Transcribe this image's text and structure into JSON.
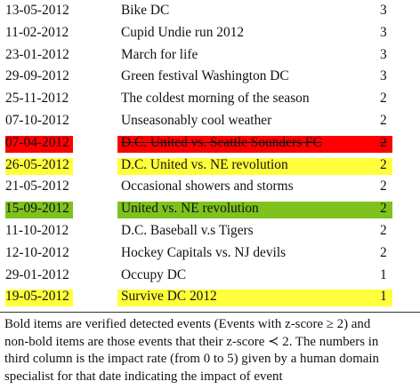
{
  "table": {
    "rows": [
      {
        "date": "13-05-2012",
        "event": "Bike DC",
        "rating": "3",
        "highlight": ""
      },
      {
        "date": "11-02-2012",
        "event": "Cupid Undie run 2012",
        "rating": "3",
        "highlight": ""
      },
      {
        "date": "23-01-2012",
        "event": "March for life",
        "rating": "3",
        "highlight": ""
      },
      {
        "date": "29-09-2012",
        "event": "Green festival Washington DC",
        "rating": "3",
        "highlight": ""
      },
      {
        "date": "25-11-2012",
        "event": "The coldest morning of the season",
        "rating": "2",
        "highlight": ""
      },
      {
        "date": "07-10-2012",
        "event": "Unseasonably cool weather",
        "rating": "2",
        "highlight": ""
      },
      {
        "date": "07-04-2012",
        "event": "D.C. United vs. Seattle Sounders FC",
        "rating": "2",
        "highlight": "red",
        "strike": true
      },
      {
        "date": "26-05-2012",
        "event": "D.C. United vs. NE revolution",
        "rating": "2",
        "highlight": "yellow"
      },
      {
        "date": "21-05-2012",
        "event": "Occasional showers and storms",
        "rating": "2",
        "highlight": ""
      },
      {
        "date": "15-09-2012",
        "event": "United vs. NE revolution",
        "rating": "2",
        "highlight": "green"
      },
      {
        "date": "11-10-2012",
        "event": "D.C. Baseball v.s Tigers",
        "rating": "2",
        "highlight": ""
      },
      {
        "date": "12-10-2012",
        "event": "Hockey Capitals vs. NJ devils",
        "rating": "2",
        "highlight": ""
      },
      {
        "date": "29-01-2012",
        "event": "Occupy DC",
        "rating": "1",
        "highlight": ""
      },
      {
        "date": "19-05-2012",
        "event": "Survive DC 2012",
        "rating": "1",
        "highlight": "yellow"
      }
    ]
  },
  "colors": {
    "yellow": "#ffff3c",
    "red": "#ff0000",
    "green": "#7ec21e"
  },
  "caption": {
    "lines": [
      "Bold items are verified detected events (Events with z-score ≥ 2) and",
      "non-bold items are those events that their z-score ≺ 2. The numbers in",
      "third column is the impact rate (from 0 to 5) given by a human domain",
      "specialist for that date indicating the impact of event"
    ]
  }
}
